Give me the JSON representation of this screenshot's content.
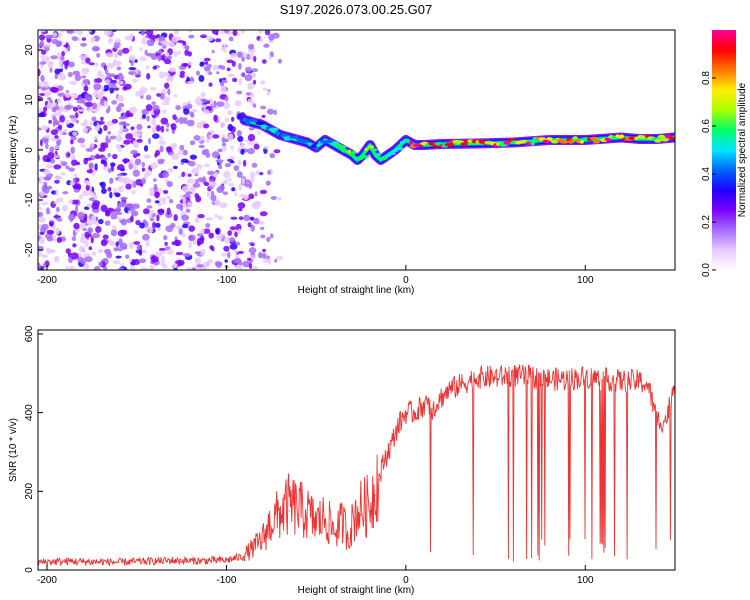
{
  "title": "S197.2026.073.00.25.G07",
  "colors": {
    "snr_line": "#ee3333",
    "colormap": [
      "#ffffff",
      "#e7c9ff",
      "#a66bff",
      "#7a00ff",
      "#1f00ff",
      "#0066ff",
      "#00e5ff",
      "#00ff66",
      "#aaff00",
      "#ffee00",
      "#ff7700",
      "#ff0000",
      "#ff0099"
    ]
  },
  "chart_data": [
    {
      "type": "heatmap",
      "name": "spectrogram",
      "xlabel": "Height of straight line (km)",
      "ylabel": "Frequency (Hz)",
      "xlim": [
        -205,
        150
      ],
      "ylim": [
        -24,
        24
      ],
      "xticks": [
        -200,
        -100,
        0,
        100
      ],
      "xtick_labels": [
        "-200",
        "-100",
        "0",
        "100"
      ],
      "yticks": [
        -20,
        -10,
        0,
        10,
        20
      ],
      "ytick_labels": [
        "-20",
        "-10",
        "0",
        "10",
        "20"
      ],
      "ridge": {
        "x": [
          -90,
          -80,
          -70,
          -60,
          -55,
          -50,
          -45,
          -40,
          -35,
          -30,
          -27,
          -24,
          -20,
          -17,
          -14,
          -10,
          -6,
          -3,
          0,
          5,
          10,
          20,
          40,
          60,
          80,
          100,
          120,
          130,
          140,
          150
        ],
        "y": [
          6,
          5,
          3,
          2,
          1.5,
          0.5,
          2,
          1,
          0,
          -1,
          -2,
          -1,
          1,
          -1,
          -2,
          -1,
          0,
          1,
          2,
          1,
          1,
          1.2,
          1.3,
          1.5,
          2,
          2,
          2.5,
          2.2,
          2.2,
          2.5
        ]
      },
      "colorbar": {
        "label": "Normalized spectral amplitude",
        "range": [
          0,
          1
        ],
        "ticks": [
          0.0,
          0.2,
          0.4,
          0.6,
          0.8
        ],
        "tick_labels": [
          "0.0",
          "0.2",
          "0.4",
          "0.6",
          "0.8"
        ]
      }
    },
    {
      "type": "line",
      "name": "snr",
      "xlabel": "Height of straight line (km)",
      "ylabel": "SNR (10 * v/v)",
      "xlim": [
        -205,
        150
      ],
      "ylim": [
        0,
        610
      ],
      "xticks": [
        -200,
        -100,
        0,
        100
      ],
      "xtick_labels": [
        "-200",
        "-100",
        "0",
        "100"
      ],
      "yticks": [
        0,
        200,
        400,
        600
      ],
      "ytick_labels": [
        "0",
        "200",
        "400",
        "600"
      ],
      "series": [
        {
          "name": "SNR",
          "x": [
            -205,
            -190,
            -175,
            -160,
            -145,
            -130,
            -115,
            -100,
            -90,
            -85,
            -80,
            -75,
            -70,
            -65,
            -60,
            -55,
            -50,
            -45,
            -40,
            -35,
            -32,
            -28,
            -25,
            -20,
            -17,
            -15,
            -12,
            -8,
            -5,
            0,
            5,
            10,
            15,
            20,
            25,
            30,
            35,
            40,
            50,
            60,
            70,
            80,
            90,
            100,
            110,
            120,
            130,
            135,
            140,
            145,
            150
          ],
          "values": [
            20,
            22,
            21,
            20,
            22,
            24,
            23,
            25,
            35,
            50,
            70,
            110,
            130,
            150,
            140,
            130,
            110,
            120,
            90,
            110,
            80,
            130,
            140,
            150,
            190,
            230,
            280,
            320,
            360,
            400,
            400,
            420,
            410,
            440,
            460,
            470,
            480,
            490,
            490,
            495,
            490,
            485,
            485,
            490,
            485,
            480,
            480,
            470,
            380,
            380,
            480
          ]
        }
      ]
    }
  ]
}
